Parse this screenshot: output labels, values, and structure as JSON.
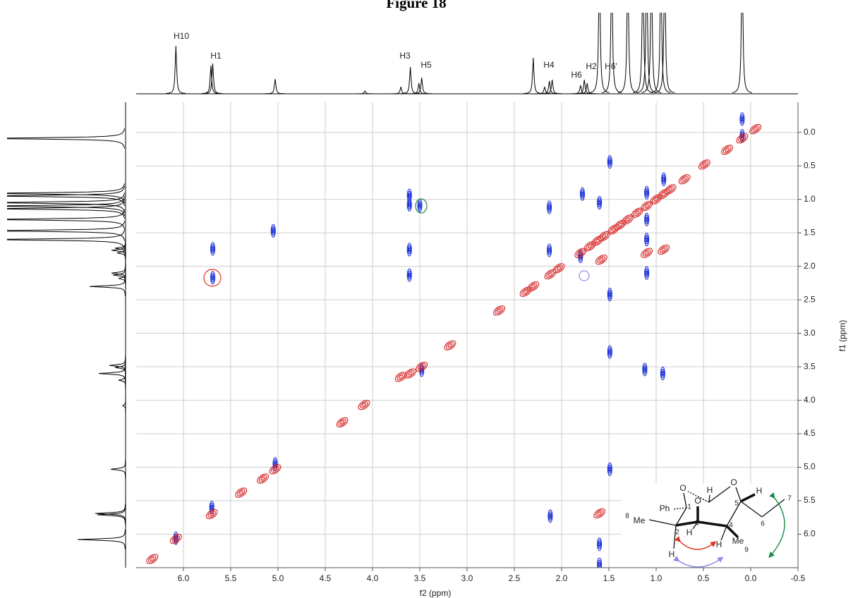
{
  "chart_data": {
    "type": "contour",
    "title": "Figure 18",
    "x_label": "f2 (ppm)",
    "y_label": "f1 (ppm)",
    "xlim": [
      6.5,
      -0.5
    ],
    "ylim": [
      -0.45,
      6.5
    ],
    "xticks": [
      {
        "value": 6,
        "label": "6.0"
      },
      5.5,
      {
        "value": 5,
        "label": "5.0"
      },
      4.5,
      {
        "value": 4,
        "label": "4.0"
      },
      3.5,
      {
        "value": 3,
        "label": "3.0"
      },
      2.5,
      {
        "value": 2,
        "label": "2.0"
      },
      1.5,
      {
        "value": 1,
        "label": "1.0"
      },
      0.5,
      {
        "value": 0,
        "label": "0.0"
      },
      -0.5
    ],
    "yticks": [
      {
        "value": 0,
        "label": "0.0"
      },
      0.5,
      {
        "value": 1,
        "label": "1.0"
      },
      1.5,
      {
        "value": 2,
        "label": "2.0"
      },
      2.5,
      {
        "value": 3,
        "label": "3.0"
      },
      3.5,
      {
        "value": 4,
        "label": "4.0"
      },
      4.5,
      {
        "value": 5,
        "label": "5.0"
      },
      5.5,
      {
        "value": 6,
        "label": "6.0"
      }
    ],
    "grid": true,
    "series": [
      {
        "color": "#1a2ed8",
        "x": [
          5.69,
          5.69,
          5.05,
          3.61,
          3.61,
          3.5,
          3.61,
          3.61,
          2.13,
          2.13,
          1.78,
          1.8,
          1.6,
          1.49,
          1.49,
          1.49,
          1.49,
          1.1,
          1.1,
          1.1,
          1.12,
          0.93,
          0.92,
          2.12,
          0.09,
          0.09,
          1.6,
          1.6,
          1.31,
          6.08,
          5.7,
          5.03,
          3.48,
          1.1
        ],
        "y": [
          1.74,
          2.17,
          1.47,
          0.94,
          1.08,
          1.09,
          1.75,
          2.13,
          1.12,
          1.76,
          0.92,
          1.85,
          1.05,
          0.44,
          2.42,
          3.28,
          5.03,
          0.9,
          1.3,
          2.1,
          3.54,
          3.6,
          0.7,
          5.73,
          0.05,
          -0.2,
          6.15,
          6.45,
          6.0,
          6.06,
          5.6,
          4.95,
          3.55,
          1.6
        ]
      },
      {
        "color": "#d42020",
        "x": [
          6.08,
          5.7,
          5.39,
          5.16,
          5.03,
          4.32,
          4.09,
          3.7,
          3.6,
          3.48,
          3.18,
          2.66,
          2.38,
          2.3,
          2.12,
          2.03,
          1.8,
          1.7,
          1.62,
          1.55,
          1.45,
          1.38,
          1.3,
          1.2,
          1.1,
          1.0,
          0.92,
          0.85,
          0.7,
          0.49,
          0.25,
          0.09,
          -0.05,
          6.33,
          1.6,
          0.92,
          1.1,
          1.58
        ],
        "y": [
          6.07,
          5.7,
          5.38,
          5.17,
          5.03,
          4.33,
          4.07,
          3.65,
          3.6,
          3.5,
          3.18,
          2.66,
          2.38,
          2.3,
          2.12,
          2.03,
          1.8,
          1.7,
          1.62,
          1.55,
          1.45,
          1.38,
          1.3,
          1.2,
          1.1,
          1.0,
          0.92,
          0.85,
          0.7,
          0.48,
          0.26,
          0.09,
          -0.05,
          6.37,
          5.69,
          1.75,
          1.8,
          1.9
        ]
      }
    ],
    "projection": {
      "color": "#000000",
      "ppm": [
        6.08,
        5.71,
        5.69,
        5.03,
        4.08,
        3.7,
        3.6,
        3.51,
        3.48,
        2.3,
        2.18,
        2.13,
        2.1,
        1.8,
        1.76,
        1.73,
        1.6,
        1.47,
        1.3,
        1.14,
        1.1,
        1.05,
        0.95,
        0.91,
        0.09
      ],
      "intensity": [
        68,
        40,
        43,
        21,
        4,
        10,
        38,
        15,
        23,
        51,
        10,
        18,
        20,
        12,
        20,
        15,
        200,
        200,
        200,
        200,
        200,
        200,
        200,
        200,
        200
      ]
    },
    "peak_labels": [
      "H10",
      "H1",
      "H3",
      "H5",
      "H4",
      "H6",
      "H2",
      "H6'"
    ]
  },
  "structure": {
    "labels": [
      "H",
      "O",
      "O",
      "O",
      "1",
      "5",
      "H",
      "7",
      "6",
      "8",
      "Me",
      "Ph",
      "2",
      "3",
      "H",
      "4",
      "H",
      "Me",
      "9",
      "H"
    ]
  }
}
